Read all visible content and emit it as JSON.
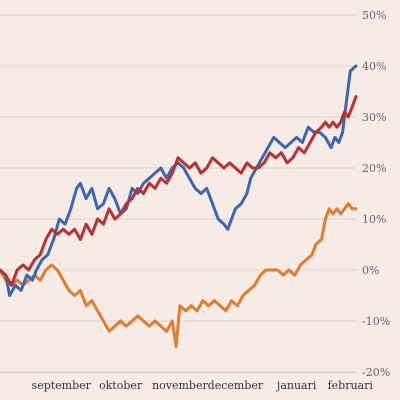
{
  "chart_data": {
    "type": "line",
    "title": "",
    "xlabel": "",
    "ylabel": "",
    "x_range": [
      "2023-08-14",
      "2024-02-16"
    ],
    "ylim": [
      -20,
      50
    ],
    "yticks": [
      -20,
      -10,
      0,
      10,
      20,
      30,
      40,
      50
    ],
    "ytick_labels": [
      "-20%",
      "-10%",
      "0%",
      "10%",
      "20%",
      "30%",
      "40%",
      "50%"
    ],
    "xticks": [
      {
        "date": "2023-09-15",
        "label": "september"
      },
      {
        "date": "2023-10-16",
        "label": "oktober"
      },
      {
        "date": "2023-11-16",
        "label": "november"
      },
      {
        "date": "2023-12-15",
        "label": "december"
      },
      {
        "date": "2024-01-16",
        "label": "januari"
      },
      {
        "date": "2024-02-13",
        "label": "februari"
      }
    ],
    "grid": true,
    "legend": false,
    "series": [
      {
        "color": "#3b66b3",
        "points": [
          [
            "2023-08-14",
            0
          ],
          [
            "2023-08-17",
            -1
          ],
          [
            "2023-08-19",
            -5
          ],
          [
            "2023-08-22",
            -3
          ],
          [
            "2023-08-25",
            -4
          ],
          [
            "2023-08-28",
            -1
          ],
          [
            "2023-08-31",
            -2
          ],
          [
            "2023-09-02",
            0
          ],
          [
            "2023-09-05",
            2
          ],
          [
            "2023-09-08",
            3
          ],
          [
            "2023-09-11",
            6
          ],
          [
            "2023-09-14",
            10
          ],
          [
            "2023-09-17",
            9
          ],
          [
            "2023-09-20",
            12
          ],
          [
            "2023-09-23",
            16
          ],
          [
            "2023-09-25",
            17
          ],
          [
            "2023-09-28",
            14
          ],
          [
            "2023-10-01",
            16
          ],
          [
            "2023-10-04",
            12
          ],
          [
            "2023-10-07",
            13
          ],
          [
            "2023-10-10",
            16
          ],
          [
            "2023-10-13",
            14
          ],
          [
            "2023-10-16",
            11
          ],
          [
            "2023-10-19",
            12
          ],
          [
            "2023-10-22",
            16
          ],
          [
            "2023-10-25",
            15
          ],
          [
            "2023-10-28",
            17
          ],
          [
            "2023-10-31",
            18
          ],
          [
            "2023-11-03",
            19
          ],
          [
            "2023-11-06",
            20
          ],
          [
            "2023-11-09",
            18
          ],
          [
            "2023-11-12",
            20
          ],
          [
            "2023-11-15",
            21
          ],
          [
            "2023-11-18",
            20
          ],
          [
            "2023-11-21",
            18
          ],
          [
            "2023-11-24",
            16
          ],
          [
            "2023-11-27",
            15
          ],
          [
            "2023-11-30",
            16
          ],
          [
            "2023-12-03",
            13
          ],
          [
            "2023-12-06",
            10
          ],
          [
            "2023-12-09",
            9
          ],
          [
            "2023-12-11",
            8
          ],
          [
            "2023-12-13",
            10
          ],
          [
            "2023-12-15",
            12
          ],
          [
            "2023-12-18",
            13
          ],
          [
            "2023-12-21",
            15
          ],
          [
            "2023-12-23",
            18
          ],
          [
            "2023-12-26",
            20
          ],
          [
            "2023-12-29",
            22
          ],
          [
            "2024-01-01",
            24
          ],
          [
            "2024-01-04",
            26
          ],
          [
            "2024-01-07",
            25
          ],
          [
            "2024-01-10",
            24
          ],
          [
            "2024-01-13",
            25
          ],
          [
            "2024-01-16",
            26
          ],
          [
            "2024-01-19",
            25
          ],
          [
            "2024-01-22",
            28
          ],
          [
            "2024-01-25",
            27
          ],
          [
            "2024-01-28",
            27
          ],
          [
            "2024-01-31",
            26
          ],
          [
            "2024-02-03",
            24
          ],
          [
            "2024-02-05",
            26
          ],
          [
            "2024-02-07",
            25
          ],
          [
            "2024-02-09",
            27
          ],
          [
            "2024-02-11",
            33
          ],
          [
            "2024-02-13",
            39
          ],
          [
            "2024-02-16",
            40
          ]
        ]
      },
      {
        "color": "#b83232",
        "points": [
          [
            "2023-08-14",
            0
          ],
          [
            "2023-08-17",
            -1
          ],
          [
            "2023-08-20",
            -3
          ],
          [
            "2023-08-23",
            0
          ],
          [
            "2023-08-26",
            1
          ],
          [
            "2023-08-29",
            0
          ],
          [
            "2023-09-01",
            2
          ],
          [
            "2023-09-04",
            3
          ],
          [
            "2023-09-07",
            6
          ],
          [
            "2023-09-10",
            8
          ],
          [
            "2023-09-13",
            7
          ],
          [
            "2023-09-16",
            8
          ],
          [
            "2023-09-19",
            7
          ],
          [
            "2023-09-22",
            8
          ],
          [
            "2023-09-25",
            6
          ],
          [
            "2023-09-28",
            9
          ],
          [
            "2023-10-01",
            7
          ],
          [
            "2023-10-04",
            10
          ],
          [
            "2023-10-07",
            9
          ],
          [
            "2023-10-10",
            12
          ],
          [
            "2023-10-13",
            10
          ],
          [
            "2023-10-16",
            11
          ],
          [
            "2023-10-19",
            13
          ],
          [
            "2023-10-22",
            14
          ],
          [
            "2023-10-25",
            16
          ],
          [
            "2023-10-28",
            15
          ],
          [
            "2023-10-31",
            17
          ],
          [
            "2023-11-03",
            16
          ],
          [
            "2023-11-06",
            18
          ],
          [
            "2023-11-09",
            17
          ],
          [
            "2023-11-12",
            19
          ],
          [
            "2023-11-15",
            22
          ],
          [
            "2023-11-18",
            21
          ],
          [
            "2023-11-21",
            20
          ],
          [
            "2023-11-24",
            21
          ],
          [
            "2023-11-27",
            19
          ],
          [
            "2023-11-30",
            20
          ],
          [
            "2023-12-03",
            22
          ],
          [
            "2023-12-06",
            21
          ],
          [
            "2023-12-09",
            20
          ],
          [
            "2023-12-12",
            21
          ],
          [
            "2023-12-15",
            20
          ],
          [
            "2023-12-18",
            19
          ],
          [
            "2023-12-21",
            21
          ],
          [
            "2023-12-24",
            20
          ],
          [
            "2023-12-27",
            20
          ],
          [
            "2023-12-30",
            21
          ],
          [
            "2024-01-02",
            23
          ],
          [
            "2024-01-05",
            22
          ],
          [
            "2024-01-08",
            23
          ],
          [
            "2024-01-11",
            21
          ],
          [
            "2024-01-14",
            22
          ],
          [
            "2024-01-17",
            24
          ],
          [
            "2024-01-20",
            23
          ],
          [
            "2024-01-23",
            25
          ],
          [
            "2024-01-26",
            27
          ],
          [
            "2024-01-29",
            28
          ],
          [
            "2024-01-31",
            29
          ],
          [
            "2024-02-02",
            28
          ],
          [
            "2024-02-04",
            29
          ],
          [
            "2024-02-06",
            28
          ],
          [
            "2024-02-08",
            29
          ],
          [
            "2024-02-10",
            31
          ],
          [
            "2024-02-12",
            30
          ],
          [
            "2024-02-14",
            32
          ],
          [
            "2024-02-16",
            34
          ]
        ]
      },
      {
        "color": "#e07d2e",
        "points": [
          [
            "2023-08-14",
            0
          ],
          [
            "2023-08-17",
            -2
          ],
          [
            "2023-08-20",
            -3
          ],
          [
            "2023-08-23",
            -2
          ],
          [
            "2023-08-26",
            -3
          ],
          [
            "2023-08-29",
            -2
          ],
          [
            "2023-09-01",
            -1
          ],
          [
            "2023-09-04",
            -2
          ],
          [
            "2023-09-07",
            0
          ],
          [
            "2023-09-10",
            1
          ],
          [
            "2023-09-13",
            0
          ],
          [
            "2023-09-16",
            -2
          ],
          [
            "2023-09-19",
            -4
          ],
          [
            "2023-09-22",
            -5
          ],
          [
            "2023-09-25",
            -4
          ],
          [
            "2023-09-28",
            -7
          ],
          [
            "2023-10-01",
            -6
          ],
          [
            "2023-10-04",
            -8
          ],
          [
            "2023-10-07",
            -10
          ],
          [
            "2023-10-10",
            -12
          ],
          [
            "2023-10-13",
            -11
          ],
          [
            "2023-10-16",
            -10
          ],
          [
            "2023-10-19",
            -11
          ],
          [
            "2023-10-22",
            -10
          ],
          [
            "2023-10-25",
            -9
          ],
          [
            "2023-10-28",
            -10
          ],
          [
            "2023-10-31",
            -11
          ],
          [
            "2023-11-03",
            -10
          ],
          [
            "2023-11-06",
            -11
          ],
          [
            "2023-11-09",
            -12
          ],
          [
            "2023-11-12",
            -10
          ],
          [
            "2023-11-14",
            -15
          ],
          [
            "2023-11-16",
            -7
          ],
          [
            "2023-11-19",
            -8
          ],
          [
            "2023-11-22",
            -7
          ],
          [
            "2023-11-25",
            -8
          ],
          [
            "2023-11-28",
            -6
          ],
          [
            "2023-12-01",
            -7
          ],
          [
            "2023-12-04",
            -6
          ],
          [
            "2023-12-07",
            -7
          ],
          [
            "2023-12-10",
            -8
          ],
          [
            "2023-12-13",
            -6
          ],
          [
            "2023-12-16",
            -7
          ],
          [
            "2023-12-19",
            -5
          ],
          [
            "2023-12-22",
            -4
          ],
          [
            "2023-12-25",
            -3
          ],
          [
            "2023-12-28",
            -1
          ],
          [
            "2023-12-31",
            0
          ],
          [
            "2024-01-03",
            0
          ],
          [
            "2024-01-06",
            0
          ],
          [
            "2024-01-09",
            -1
          ],
          [
            "2024-01-12",
            0
          ],
          [
            "2024-01-15",
            -1
          ],
          [
            "2024-01-18",
            1
          ],
          [
            "2024-01-21",
            2
          ],
          [
            "2024-01-24",
            3
          ],
          [
            "2024-01-26",
            5
          ],
          [
            "2024-01-29",
            6
          ],
          [
            "2024-01-31",
            10
          ],
          [
            "2024-02-02",
            12
          ],
          [
            "2024-02-04",
            11
          ],
          [
            "2024-02-06",
            12
          ],
          [
            "2024-02-08",
            11
          ],
          [
            "2024-02-10",
            12
          ],
          [
            "2024-02-12",
            13
          ],
          [
            "2024-02-14",
            12
          ],
          [
            "2024-02-16",
            12
          ]
        ]
      }
    ]
  }
}
